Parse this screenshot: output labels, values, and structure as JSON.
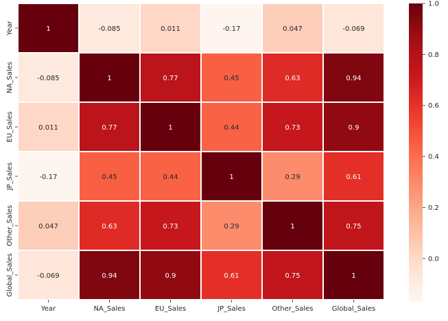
{
  "chart_data": {
    "type": "heatmap",
    "title": "",
    "xlabel": "",
    "ylabel": "",
    "rows": [
      "Year",
      "NA_Sales",
      "EU_Sales",
      "JP_Sales",
      "Other_Sales",
      "Global_Sales"
    ],
    "columns": [
      "Year",
      "NA_Sales",
      "EU_Sales",
      "JP_Sales",
      "Other_Sales",
      "Global_Sales"
    ],
    "values": [
      [
        1,
        -0.085,
        0.011,
        -0.17,
        0.047,
        -0.069
      ],
      [
        -0.085,
        1,
        0.77,
        0.45,
        0.63,
        0.94
      ],
      [
        0.011,
        0.77,
        1,
        0.44,
        0.73,
        0.9
      ],
      [
        -0.17,
        0.45,
        0.44,
        1,
        0.29,
        0.61
      ],
      [
        0.047,
        0.63,
        0.73,
        0.29,
        1,
        0.75
      ],
      [
        -0.069,
        0.94,
        0.9,
        0.61,
        0.75,
        1
      ]
    ],
    "colormap": "Reds",
    "vmin": -0.17,
    "vmax": 1,
    "colorbar": {
      "ticks": [
        1.0,
        0.8,
        0.6,
        0.4,
        0.2,
        0.0
      ],
      "tick_labels": [
        "1.0",
        "0.8",
        "0.6",
        "0.4",
        "0.2",
        "0.0"
      ]
    },
    "annotations": true,
    "cell_separator_color": "#ffffff"
  }
}
